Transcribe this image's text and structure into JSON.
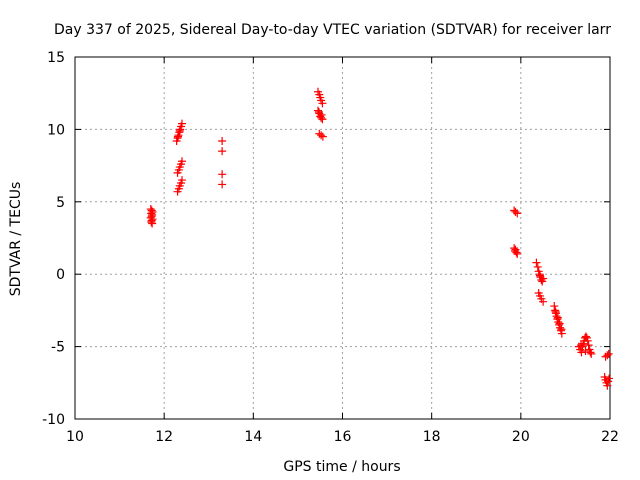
{
  "chart_data": {
    "type": "scatter",
    "title": "Day 337 of 2025, Sidereal Day-to-day VTEC variation (SDTVAR) for receiver larr",
    "xlabel": "GPS time / hours",
    "ylabel": "SDTVAR / TECUs",
    "xlim": [
      10,
      22
    ],
    "ylim": [
      -10,
      15
    ],
    "xticks": [
      10,
      12,
      14,
      16,
      18,
      20,
      22
    ],
    "yticks": [
      -10,
      -5,
      0,
      5,
      10,
      15
    ],
    "xtick_labels": [
      "10",
      "12",
      "14",
      "16",
      "18",
      "20",
      "22"
    ],
    "ytick_labels": [
      "-10",
      "-5",
      "0",
      "5",
      "10",
      "15"
    ],
    "grid": true,
    "marker": "+",
    "color": "#ff0000",
    "series": [
      {
        "name": "SDTVAR",
        "points": [
          [
            11.7,
            4.5
          ],
          [
            11.72,
            4.4
          ],
          [
            11.74,
            4.3
          ],
          [
            11.71,
            4.2
          ],
          [
            11.73,
            4.1
          ],
          [
            11.72,
            4.0
          ],
          [
            11.7,
            3.9
          ],
          [
            11.74,
            3.8
          ],
          [
            11.72,
            3.7
          ],
          [
            11.71,
            3.6
          ],
          [
            11.73,
            3.5
          ],
          [
            12.3,
            5.7
          ],
          [
            12.33,
            5.9
          ],
          [
            12.35,
            6.1
          ],
          [
            12.38,
            6.3
          ],
          [
            12.4,
            6.5
          ],
          [
            12.3,
            7.0
          ],
          [
            12.33,
            7.2
          ],
          [
            12.35,
            7.4
          ],
          [
            12.38,
            7.6
          ],
          [
            12.4,
            7.8
          ],
          [
            12.28,
            9.2
          ],
          [
            12.3,
            9.4
          ],
          [
            12.32,
            9.6
          ],
          [
            12.34,
            9.8
          ],
          [
            12.36,
            10.0
          ],
          [
            12.38,
            10.2
          ],
          [
            12.4,
            10.4
          ],
          [
            12.31,
            9.5
          ],
          [
            12.35,
            9.9
          ],
          [
            13.3,
            9.2
          ],
          [
            13.3,
            8.5
          ],
          [
            13.3,
            6.9
          ],
          [
            13.3,
            6.2
          ],
          [
            15.45,
            12.6
          ],
          [
            15.48,
            12.4
          ],
          [
            15.5,
            12.2
          ],
          [
            15.52,
            12.0
          ],
          [
            15.55,
            11.8
          ],
          [
            15.45,
            11.3
          ],
          [
            15.48,
            11.1
          ],
          [
            15.5,
            10.9
          ],
          [
            15.52,
            10.8
          ],
          [
            15.55,
            10.7
          ],
          [
            15.47,
            11.2
          ],
          [
            15.53,
            11.0
          ],
          [
            15.48,
            9.7
          ],
          [
            15.52,
            9.6
          ],
          [
            15.56,
            9.5
          ],
          [
            19.85,
            4.4
          ],
          [
            19.88,
            4.3
          ],
          [
            19.92,
            4.2
          ],
          [
            19.85,
            1.8
          ],
          [
            19.87,
            1.6
          ],
          [
            19.9,
            1.5
          ],
          [
            19.92,
            1.4
          ],
          [
            19.88,
            1.7
          ],
          [
            20.35,
            0.8
          ],
          [
            20.38,
            0.5
          ],
          [
            20.4,
            0.2
          ],
          [
            20.42,
            0.0
          ],
          [
            20.44,
            -0.2
          ],
          [
            20.46,
            -0.4
          ],
          [
            20.48,
            -0.5
          ],
          [
            20.5,
            -0.3
          ],
          [
            20.43,
            -0.1
          ],
          [
            20.4,
            -1.3
          ],
          [
            20.43,
            -1.5
          ],
          [
            20.46,
            -1.7
          ],
          [
            20.5,
            -1.9
          ],
          [
            20.75,
            -2.2
          ],
          [
            20.77,
            -2.5
          ],
          [
            20.79,
            -2.7
          ],
          [
            20.8,
            -2.9
          ],
          [
            20.82,
            -3.1
          ],
          [
            20.84,
            -3.3
          ],
          [
            20.86,
            -3.5
          ],
          [
            20.88,
            -3.7
          ],
          [
            20.9,
            -3.9
          ],
          [
            20.92,
            -4.1
          ],
          [
            20.78,
            -2.6
          ],
          [
            20.83,
            -3.0
          ],
          [
            20.87,
            -3.4
          ],
          [
            20.91,
            -3.8
          ],
          [
            21.3,
            -5.0
          ],
          [
            21.33,
            -5.2
          ],
          [
            21.36,
            -5.4
          ],
          [
            21.38,
            -5.0
          ],
          [
            21.4,
            -4.8
          ],
          [
            21.42,
            -4.6
          ],
          [
            21.44,
            -4.4
          ],
          [
            21.46,
            -4.3
          ],
          [
            21.48,
            -4.4
          ],
          [
            21.5,
            -4.6
          ],
          [
            21.52,
            -4.9
          ],
          [
            21.54,
            -5.2
          ],
          [
            21.56,
            -5.4
          ],
          [
            21.58,
            -5.5
          ],
          [
            21.45,
            -5.3
          ],
          [
            21.35,
            -4.9
          ],
          [
            21.9,
            -5.7
          ],
          [
            21.94,
            -5.6
          ],
          [
            21.97,
            -5.5
          ],
          [
            21.88,
            -7.1
          ],
          [
            21.9,
            -7.3
          ],
          [
            21.92,
            -7.5
          ],
          [
            21.94,
            -7.7
          ],
          [
            21.96,
            -7.4
          ],
          [
            21.98,
            -7.2
          ]
        ]
      }
    ]
  }
}
